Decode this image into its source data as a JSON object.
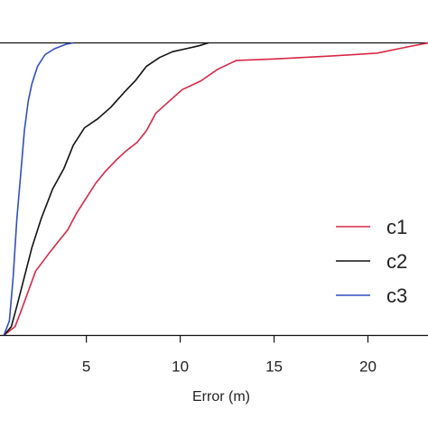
{
  "chart_data": {
    "type": "line",
    "title": "",
    "xlabel": "Error (m)",
    "ylabel": "",
    "xlim": [
      0.4,
      23.2
    ],
    "ylim": [
      0,
      1
    ],
    "xticks": [
      5,
      10,
      15,
      20
    ],
    "xtick_labels": [
      "5",
      "10",
      "15",
      "20"
    ],
    "grid": false,
    "legend_position": "right",
    "series": [
      {
        "name": "c1",
        "color": "#d62845",
        "points": [
          [
            0.6,
            0.0
          ],
          [
            1.2,
            0.03
          ],
          [
            1.5,
            0.08
          ],
          [
            1.9,
            0.15
          ],
          [
            2.3,
            0.22
          ],
          [
            3.0,
            0.28
          ],
          [
            3.5,
            0.32
          ],
          [
            4.0,
            0.36
          ],
          [
            4.5,
            0.42
          ],
          [
            5.0,
            0.47
          ],
          [
            5.5,
            0.52
          ],
          [
            6.0,
            0.56
          ],
          [
            6.6,
            0.6
          ],
          [
            7.1,
            0.63
          ],
          [
            7.7,
            0.66
          ],
          [
            8.2,
            0.7
          ],
          [
            8.7,
            0.76
          ],
          [
            9.4,
            0.8
          ],
          [
            10.1,
            0.84
          ],
          [
            11.1,
            0.87
          ],
          [
            12.0,
            0.91
          ],
          [
            13.0,
            0.94
          ],
          [
            15.0,
            0.945
          ],
          [
            18.0,
            0.955
          ],
          [
            20.5,
            0.965
          ],
          [
            22.0,
            0.985
          ],
          [
            23.2,
            1.0
          ]
        ]
      },
      {
        "name": "c2",
        "color": "#111111",
        "points": [
          [
            0.6,
            0.0
          ],
          [
            1.0,
            0.03
          ],
          [
            1.3,
            0.1
          ],
          [
            1.7,
            0.2
          ],
          [
            2.1,
            0.3
          ],
          [
            2.6,
            0.4
          ],
          [
            3.2,
            0.5
          ],
          [
            3.8,
            0.57
          ],
          [
            4.3,
            0.65
          ],
          [
            4.9,
            0.71
          ],
          [
            5.6,
            0.74
          ],
          [
            6.3,
            0.78
          ],
          [
            7.0,
            0.83
          ],
          [
            7.6,
            0.87
          ],
          [
            8.2,
            0.92
          ],
          [
            8.9,
            0.95
          ],
          [
            9.6,
            0.97
          ],
          [
            10.3,
            0.98
          ],
          [
            11.0,
            0.99
          ],
          [
            11.5,
            1.0
          ]
        ]
      },
      {
        "name": "c3",
        "color": "#2f4fc0",
        "points": [
          [
            0.6,
            0.0
          ],
          [
            0.9,
            0.05
          ],
          [
            1.1,
            0.2
          ],
          [
            1.3,
            0.4
          ],
          [
            1.5,
            0.55
          ],
          [
            1.7,
            0.7
          ],
          [
            1.9,
            0.8
          ],
          [
            2.1,
            0.86
          ],
          [
            2.4,
            0.92
          ],
          [
            2.8,
            0.96
          ],
          [
            3.3,
            0.98
          ],
          [
            3.9,
            0.995
          ],
          [
            4.3,
            1.0
          ]
        ]
      }
    ]
  }
}
